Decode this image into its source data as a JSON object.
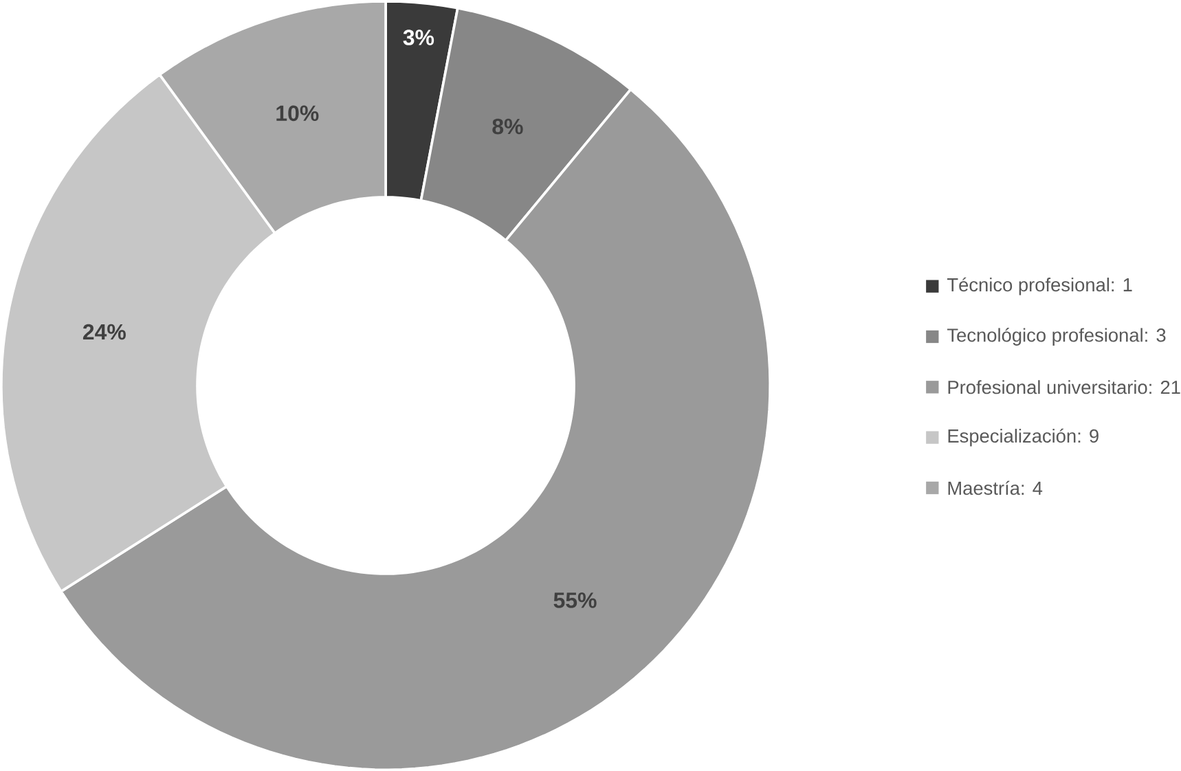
{
  "chart_data": {
    "type": "donut",
    "categories": [
      "Técnico profesional: 1",
      "Tecnológico profesional: 3",
      "Profesional universitario: 21",
      "Especialización: 9",
      "Maestría: 4"
    ],
    "values": [
      3,
      8,
      55,
      24,
      10
    ],
    "colors": [
      "#3a3a3a",
      "#878787",
      "#9a9a9a",
      "#c6c6c6",
      "#a8a8a8"
    ],
    "value_labels": [
      "3%",
      "8%",
      "55%",
      "24%",
      "10%"
    ],
    "legend": "right"
  }
}
